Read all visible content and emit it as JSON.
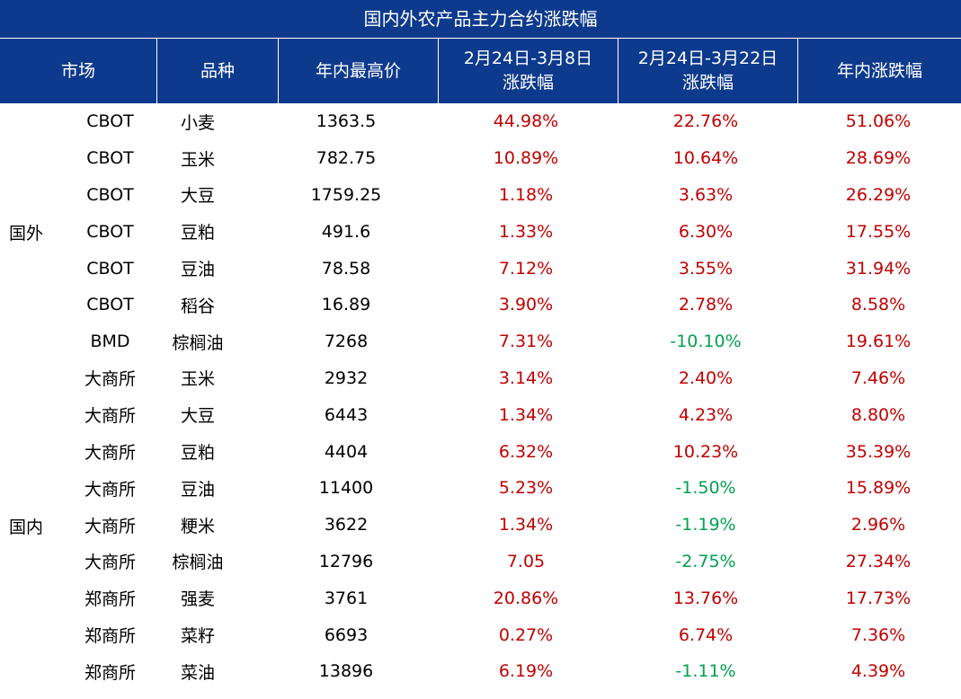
{
  "title": "国内外农产品主力合约涨跌幅",
  "headers": [
    "市场",
    "品种",
    "年内最高价",
    "2月24日-3月8日\n涨跌幅",
    "2月24日-3月22日\n涨跌幅",
    "年内涨跌幅"
  ],
  "groups": {
    "foreign": "国外",
    "domestic": "国内"
  },
  "colors": {
    "header_bg": "#0d3a8c",
    "positive": "#c00000",
    "negative": "#00a050"
  },
  "rows": [
    {
      "market": "CBOT",
      "variety": "小麦",
      "high": "1363.5",
      "p1": "44.98%",
      "p2": "22.76%",
      "yr": "51.06%",
      "p1s": "pos",
      "p2s": "pos",
      "yrs": "pos"
    },
    {
      "market": "CBOT",
      "variety": "玉米",
      "high": "782.75",
      "p1": "10.89%",
      "p2": "10.64%",
      "yr": "28.69%",
      "p1s": "pos",
      "p2s": "pos",
      "yrs": "pos"
    },
    {
      "market": "CBOT",
      "variety": "大豆",
      "high": "1759.25",
      "p1": "1.18%",
      "p2": "3.63%",
      "yr": "26.29%",
      "p1s": "pos",
      "p2s": "pos",
      "yrs": "pos"
    },
    {
      "market": "CBOT",
      "variety": "豆粕",
      "high": "491.6",
      "p1": "1.33%",
      "p2": "6.30%",
      "yr": "17.55%",
      "p1s": "pos",
      "p2s": "pos",
      "yrs": "pos"
    },
    {
      "market": "CBOT",
      "variety": "豆油",
      "high": "78.58",
      "p1": "7.12%",
      "p2": "3.55%",
      "yr": "31.94%",
      "p1s": "pos",
      "p2s": "pos",
      "yrs": "pos"
    },
    {
      "market": "CBOT",
      "variety": "稻谷",
      "high": "16.89",
      "p1": "3.90%",
      "p2": "2.78%",
      "yr": "8.58%",
      "p1s": "pos",
      "p2s": "pos",
      "yrs": "pos"
    },
    {
      "market": "BMD",
      "variety": "棕榈油",
      "high": "7268",
      "p1": "7.31%",
      "p2": "-10.10%",
      "yr": "19.61%",
      "p1s": "pos",
      "p2s": "neg",
      "yrs": "pos"
    },
    {
      "market": "大商所",
      "variety": "玉米",
      "high": "2932",
      "p1": "3.14%",
      "p2": "2.40%",
      "yr": "7.46%",
      "p1s": "pos",
      "p2s": "pos",
      "yrs": "pos"
    },
    {
      "market": "大商所",
      "variety": "大豆",
      "high": "6443",
      "p1": "1.34%",
      "p2": "4.23%",
      "yr": "8.80%",
      "p1s": "pos",
      "p2s": "pos",
      "yrs": "pos"
    },
    {
      "market": "大商所",
      "variety": "豆粕",
      "high": "4404",
      "p1": "6.32%",
      "p2": "10.23%",
      "yr": "35.39%",
      "p1s": "pos",
      "p2s": "pos",
      "yrs": "pos"
    },
    {
      "market": "大商所",
      "variety": "豆油",
      "high": "11400",
      "p1": "5.23%",
      "p2": "-1.50%",
      "yr": "15.89%",
      "p1s": "pos",
      "p2s": "neg",
      "yrs": "pos"
    },
    {
      "market": "大商所",
      "variety": "粳米",
      "high": "3622",
      "p1": "1.34%",
      "p2": "-1.19%",
      "yr": "2.96%",
      "p1s": "pos",
      "p2s": "neg",
      "yrs": "pos"
    },
    {
      "market": "大商所",
      "variety": "棕榈油",
      "high": "12796",
      "p1": "7.05",
      "p2": "-2.75%",
      "yr": "27.34%",
      "p1s": "pos",
      "p2s": "neg",
      "yrs": "pos"
    },
    {
      "market": "郑商所",
      "variety": "强麦",
      "high": "3761",
      "p1": "20.86%",
      "p2": "13.76%",
      "yr": "17.73%",
      "p1s": "pos",
      "p2s": "pos",
      "yrs": "pos"
    },
    {
      "market": "郑商所",
      "variety": "菜籽",
      "high": "6693",
      "p1": "0.27%",
      "p2": "6.74%",
      "yr": "7.36%",
      "p1s": "pos",
      "p2s": "pos",
      "yrs": "pos"
    },
    {
      "market": "郑商所",
      "variety": "菜油",
      "high": "13896",
      "p1": "6.19%",
      "p2": "-1.11%",
      "yr": "4.39%",
      "p1s": "pos",
      "p2s": "neg",
      "yrs": "pos"
    }
  ]
}
